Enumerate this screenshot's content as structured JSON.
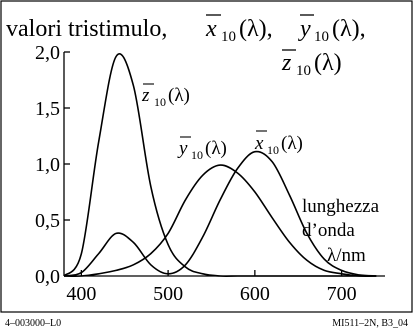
{
  "chart_data": {
    "type": "line",
    "title_line1": "valori tristimulo,",
    "title_line1_series": [
      {
        "symbol": "x",
        "sub": "10",
        "arg": "(λ),"
      },
      {
        "symbol": "y",
        "sub": "10",
        "arg": "(λ),"
      }
    ],
    "title_line2_series": {
      "symbol": "z",
      "sub": "10",
      "arg": "(λ)"
    },
    "x_ticks": [
      "400",
      "500",
      "600",
      "700"
    ],
    "y_ticks": [
      "0,0",
      "0,5",
      "1,0",
      "1,5",
      "2,0"
    ],
    "xlim": [
      380,
      750
    ],
    "ylim": [
      0,
      2.0
    ],
    "axis_note": [
      "lunghezza",
      "d’onda",
      "λ/nm"
    ],
    "series": [
      {
        "name": "x̄10(λ)",
        "symbol": "x",
        "sub": "10",
        "arg": "(λ)",
        "x": [
          380,
          400,
          420,
          440,
          460,
          480,
          500,
          520,
          540,
          560,
          580,
          600,
          620,
          640,
          660,
          680,
          700,
          720,
          740
        ],
        "values": [
          0.0,
          0.03,
          0.2,
          0.38,
          0.3,
          0.1,
          0.02,
          0.1,
          0.35,
          0.68,
          0.96,
          1.11,
          1.02,
          0.72,
          0.38,
          0.15,
          0.05,
          0.01,
          0.0
        ]
      },
      {
        "name": "ȳ10(λ)",
        "symbol": "y",
        "sub": "10",
        "arg": "(λ)",
        "x": [
          380,
          400,
          420,
          440,
          460,
          480,
          500,
          520,
          540,
          560,
          580,
          600,
          620,
          640,
          660,
          680,
          700,
          720,
          740
        ],
        "values": [
          0.0,
          0.0,
          0.02,
          0.05,
          0.1,
          0.2,
          0.38,
          0.68,
          0.9,
          0.99,
          0.92,
          0.75,
          0.52,
          0.3,
          0.14,
          0.05,
          0.02,
          0.0,
          0.0
        ]
      },
      {
        "name": "z̄10(λ)",
        "symbol": "z",
        "sub": "10",
        "arg": "(λ)",
        "x": [
          380,
          400,
          420,
          440,
          460,
          480,
          500,
          520,
          540,
          560,
          580,
          600,
          620,
          640,
          660,
          680,
          700,
          720,
          740
        ],
        "values": [
          0.0,
          0.2,
          1.2,
          1.96,
          1.7,
          0.8,
          0.28,
          0.08,
          0.02,
          0.0,
          0.0,
          0.0,
          0.0,
          0.0,
          0.0,
          0.0,
          0.0,
          0.0,
          0.0
        ]
      }
    ]
  },
  "footer": {
    "left": "4–003000–L0",
    "right": "MI511–2N,  B3_04"
  }
}
